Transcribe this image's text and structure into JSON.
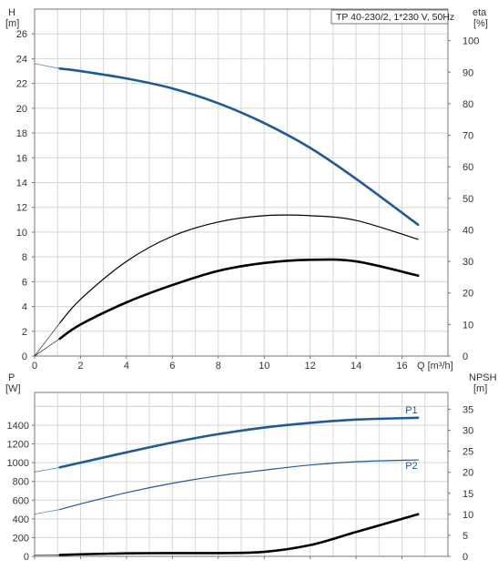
{
  "chart_data": [
    {
      "type": "line",
      "id": "top",
      "title": "TP 40-230/2, 1*230 V, 50Hz",
      "xlabel": "Q [m³/h]",
      "ylabel_left_line1": "H",
      "ylabel_left_line2": "[m]",
      "ylabel_right_line1": "eta",
      "ylabel_right_line2": "[%]",
      "xlim": [
        0,
        18
      ],
      "ylim_left": [
        0,
        28
      ],
      "ylim_right": [
        0,
        110
      ],
      "x_ticks": [
        "0",
        "2",
        "4",
        "6",
        "8",
        "10",
        "12",
        "14",
        "16"
      ],
      "y_ticks_left": [
        "0",
        "2",
        "4",
        "6",
        "8",
        "10",
        "12",
        "14",
        "16",
        "18",
        "20",
        "22",
        "24",
        "26"
      ],
      "y_ticks_right": [
        "0",
        "10",
        "20",
        "30",
        "40",
        "50",
        "60",
        "70",
        "80",
        "90",
        "100"
      ],
      "grid": true,
      "series": [
        {
          "axis": "left",
          "color": "#1f5a96",
          "width": 2.6,
          "x": [
            1.1,
            2,
            4,
            6,
            8,
            10,
            12,
            14,
            16.7
          ],
          "y": [
            23.2,
            23.0,
            22.4,
            21.6,
            20.4,
            18.8,
            16.8,
            14.3,
            10.6
          ],
          "extension": {
            "x": [
              0,
              1.1
            ],
            "y": [
              23.6,
              23.2
            ]
          }
        },
        {
          "axis": "right",
          "color": "#000000",
          "width": 1.2,
          "x": [
            1.1,
            2,
            4,
            6,
            8,
            10,
            12,
            14,
            16.7
          ],
          "y": [
            10.5,
            18,
            30,
            38,
            42.5,
            44.5,
            44.5,
            43,
            37
          ],
          "extension": {
            "x": [
              0,
              1.1
            ],
            "y": [
              0,
              10.5
            ]
          }
        },
        {
          "axis": "right",
          "color": "#000000",
          "width": 2.6,
          "x": [
            1.1,
            2,
            4,
            6,
            8,
            10,
            12,
            14,
            16.7
          ],
          "y": [
            5.5,
            10,
            17,
            22.5,
            27,
            29.5,
            30.5,
            30,
            25.5
          ],
          "extension": {
            "x": [
              0,
              1.1
            ],
            "y": [
              0,
              5.5
            ]
          }
        }
      ]
    },
    {
      "type": "line",
      "id": "bottom",
      "ylabel_left_line1": "P",
      "ylabel_left_line2": "[W]",
      "ylabel_right_line1": "NPSH",
      "ylabel_right_line2": "[m]",
      "xlim": [
        0,
        18
      ],
      "ylim_left": [
        0,
        1750
      ],
      "ylim_right": [
        0,
        39
      ],
      "y_ticks_left": [
        "0",
        "200",
        "400",
        "600",
        "800",
        "1000",
        "1200",
        "1400"
      ],
      "y_ticks_right": [
        "0",
        "5",
        "10",
        "15",
        "20",
        "25",
        "30",
        "35"
      ],
      "grid": true,
      "series": [
        {
          "name": "P1",
          "axis": "left",
          "color": "#1f5a96",
          "width": 2.6,
          "x": [
            1.1,
            2,
            4,
            6,
            8,
            10,
            12,
            14,
            16.7
          ],
          "y": [
            950,
            1000,
            1110,
            1215,
            1305,
            1375,
            1425,
            1460,
            1480
          ],
          "extension": {
            "x": [
              0,
              1.1
            ],
            "y": [
              900,
              950
            ]
          }
        },
        {
          "name": "P2",
          "axis": "left",
          "color": "#1f5a96",
          "width": 1.2,
          "x": [
            1.1,
            2,
            4,
            6,
            8,
            10,
            12,
            14,
            16.7
          ],
          "y": [
            500,
            560,
            680,
            780,
            860,
            920,
            975,
            1010,
            1030
          ],
          "extension": {
            "x": [
              0,
              1.1
            ],
            "y": [
              450,
              500
            ]
          }
        },
        {
          "axis": "left",
          "color": "#000000",
          "width": 2.6,
          "x": [
            1.1,
            2,
            4,
            6,
            8,
            10,
            12,
            14,
            16.7
          ],
          "y": [
            15,
            22,
            32,
            35,
            35,
            48,
            120,
            260,
            450
          ],
          "extension": {
            "x": [
              0,
              1.1
            ],
            "y": [
              12,
              15
            ]
          }
        }
      ]
    }
  ]
}
